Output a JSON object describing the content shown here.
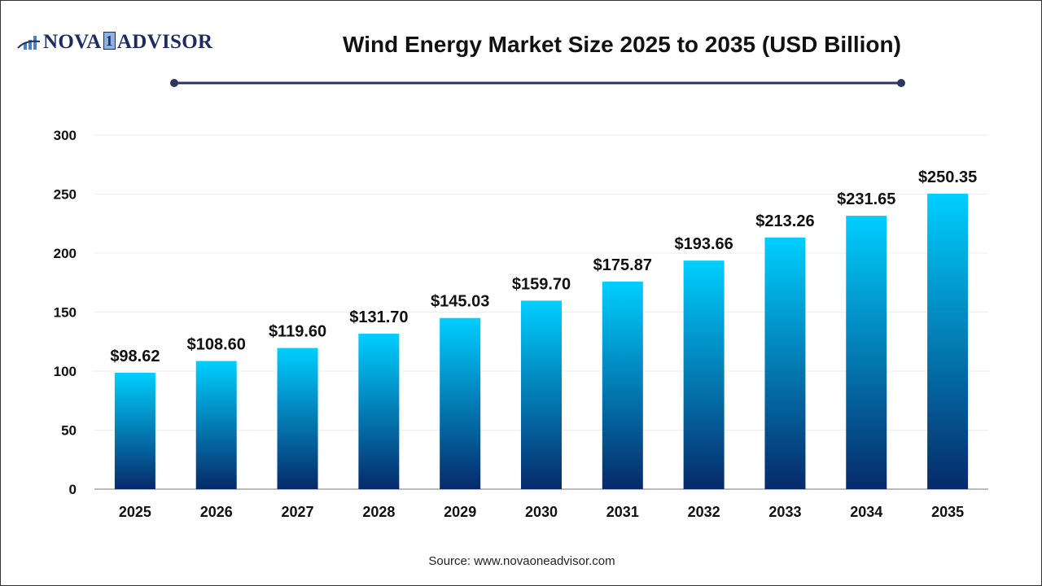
{
  "logo": {
    "text_left": "NOVA",
    "text_digit": "1",
    "text_right": "ADVISOR"
  },
  "chart_data": {
    "type": "bar",
    "title": "Wind Energy Market Size 2025 to 2035 (USD Billion)",
    "categories": [
      "2025",
      "2026",
      "2027",
      "2028",
      "2029",
      "2030",
      "2031",
      "2032",
      "2033",
      "2034",
      "2035"
    ],
    "values": [
      98.62,
      108.6,
      119.6,
      131.7,
      145.03,
      159.7,
      175.87,
      193.66,
      213.26,
      231.65,
      250.35
    ],
    "data_labels": [
      "$98.62",
      "$108.60",
      "$119.60",
      "$131.70",
      "$145.03",
      "$159.70",
      "$175.87",
      "$193.66",
      "$213.26",
      "$231.65",
      "$250.35"
    ],
    "xlabel": "",
    "ylabel": "",
    "ylim": [
      0,
      300
    ],
    "yticks": [
      0,
      50,
      100,
      150,
      200,
      250,
      300
    ],
    "grid": true,
    "bar_gradient": {
      "top": "#00cfff",
      "bottom": "#062a6a"
    }
  },
  "source": "Source: www.novaoneadvisor.com"
}
